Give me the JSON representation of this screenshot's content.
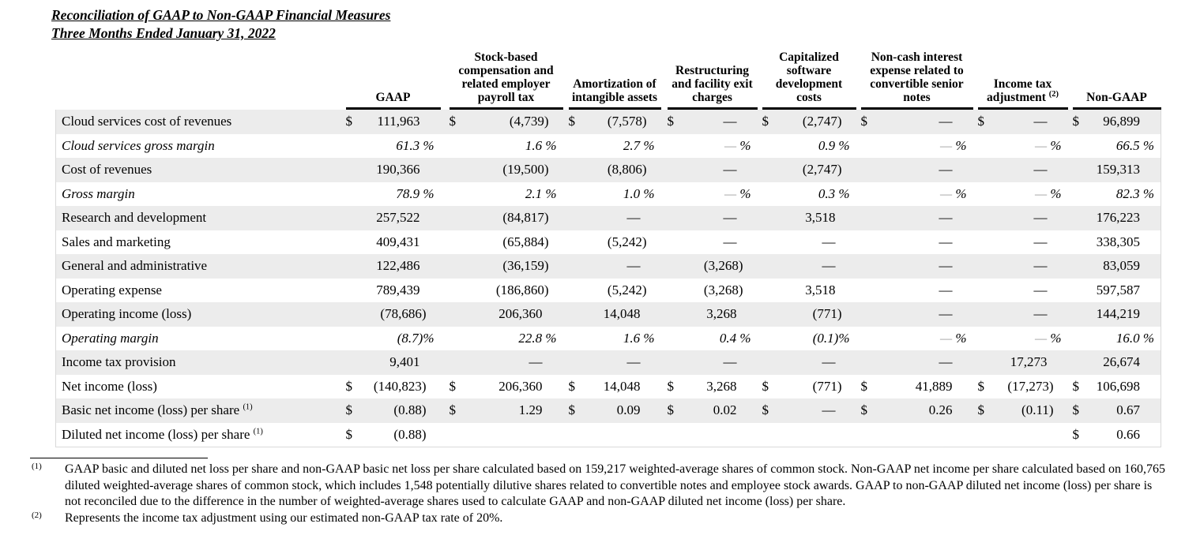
{
  "title": {
    "line1": "Reconciliation of GAAP to Non-GAAP Financial Measures",
    "line2": "Three Months Ended January 31, 2022"
  },
  "table": {
    "columns": [
      {
        "label": "GAAP",
        "sup": ""
      },
      {
        "label": "Stock-based compensation and related employer payroll tax",
        "sup": ""
      },
      {
        "label": "Amortization of intangible assets",
        "sup": ""
      },
      {
        "label": "Restructuring and facility exit charges",
        "sup": ""
      },
      {
        "label": "Capitalized software development costs",
        "sup": ""
      },
      {
        "label": "Non-cash interest expense related to convertible senior notes",
        "sup": ""
      },
      {
        "label": "Income tax adjustment",
        "sup": "(2)"
      },
      {
        "label": "Non-GAAP",
        "sup": ""
      }
    ],
    "rows": [
      {
        "label": "Cloud services cost of revenues",
        "sup": "",
        "shaded": true,
        "italic": false,
        "cells": [
          [
            "$",
            "111,963",
            "n"
          ],
          [
            "$",
            "(4,739)",
            "p"
          ],
          [
            "$",
            "(7,578)",
            "p"
          ],
          [
            "$",
            "—",
            "d"
          ],
          [
            "$",
            "(2,747)",
            "p"
          ],
          [
            "$",
            "—",
            "d"
          ],
          [
            "$",
            "—",
            "d"
          ],
          [
            "$",
            "96,899",
            "n"
          ]
        ]
      },
      {
        "label": "Cloud services gross margin",
        "sup": "",
        "shaded": false,
        "italic": true,
        "cells": [
          [
            "",
            "61.3 %",
            "pct"
          ],
          [
            "",
            "1.6 %",
            "pct"
          ],
          [
            "",
            "2.7 %",
            "pct"
          ],
          [
            "",
            "— %",
            "pctd"
          ],
          [
            "",
            "0.9 %",
            "pct"
          ],
          [
            "",
            "— %",
            "pctd"
          ],
          [
            "",
            "— %",
            "pctd"
          ],
          [
            "",
            "66.5 %",
            "pct"
          ]
        ]
      },
      {
        "label": "Cost of revenues",
        "sup": "",
        "shaded": true,
        "italic": false,
        "cells": [
          [
            "",
            "190,366",
            "n"
          ],
          [
            "",
            "(19,500)",
            "p"
          ],
          [
            "",
            "(8,806)",
            "p"
          ],
          [
            "",
            "—",
            "d"
          ],
          [
            "",
            "(2,747)",
            "p"
          ],
          [
            "",
            "—",
            "d"
          ],
          [
            "",
            "—",
            "d"
          ],
          [
            "",
            "159,313",
            "n"
          ]
        ]
      },
      {
        "label": "Gross margin",
        "sup": "",
        "shaded": false,
        "italic": true,
        "cells": [
          [
            "",
            "78.9 %",
            "pct"
          ],
          [
            "",
            "2.1 %",
            "pct"
          ],
          [
            "",
            "1.0 %",
            "pct"
          ],
          [
            "",
            "— %",
            "pctd"
          ],
          [
            "",
            "0.3 %",
            "pct"
          ],
          [
            "",
            "— %",
            "pctd"
          ],
          [
            "",
            "— %",
            "pctd"
          ],
          [
            "",
            "82.3 %",
            "pct"
          ]
        ]
      },
      {
        "label": "Research and development",
        "sup": "",
        "shaded": true,
        "italic": false,
        "cells": [
          [
            "",
            "257,522",
            "n"
          ],
          [
            "",
            "(84,817)",
            "p"
          ],
          [
            "",
            "—",
            "d"
          ],
          [
            "",
            "—",
            "d"
          ],
          [
            "",
            "3,518",
            "n"
          ],
          [
            "",
            "—",
            "d"
          ],
          [
            "",
            "—",
            "d"
          ],
          [
            "",
            "176,223",
            "n"
          ]
        ]
      },
      {
        "label": "Sales and marketing",
        "sup": "",
        "shaded": false,
        "italic": false,
        "cells": [
          [
            "",
            "409,431",
            "n"
          ],
          [
            "",
            "(65,884)",
            "p"
          ],
          [
            "",
            "(5,242)",
            "p"
          ],
          [
            "",
            "—",
            "d"
          ],
          [
            "",
            "—",
            "d"
          ],
          [
            "",
            "—",
            "d"
          ],
          [
            "",
            "—",
            "d"
          ],
          [
            "",
            "338,305",
            "n"
          ]
        ]
      },
      {
        "label": "General and administrative",
        "sup": "",
        "shaded": true,
        "italic": false,
        "cells": [
          [
            "",
            "122,486",
            "n"
          ],
          [
            "",
            "(36,159)",
            "p"
          ],
          [
            "",
            "—",
            "d"
          ],
          [
            "",
            "(3,268)",
            "p"
          ],
          [
            "",
            "—",
            "d"
          ],
          [
            "",
            "—",
            "d"
          ],
          [
            "",
            "—",
            "d"
          ],
          [
            "",
            "83,059",
            "n"
          ]
        ]
      },
      {
        "label": "Operating expense",
        "sup": "",
        "shaded": false,
        "italic": false,
        "cells": [
          [
            "",
            "789,439",
            "n"
          ],
          [
            "",
            "(186,860)",
            "p"
          ],
          [
            "",
            "(5,242)",
            "p"
          ],
          [
            "",
            "(3,268)",
            "p"
          ],
          [
            "",
            "3,518",
            "n"
          ],
          [
            "",
            "—",
            "d"
          ],
          [
            "",
            "—",
            "d"
          ],
          [
            "",
            "597,587",
            "n"
          ]
        ]
      },
      {
        "label": "Operating income (loss)",
        "sup": "",
        "shaded": true,
        "italic": false,
        "cells": [
          [
            "",
            "(78,686)",
            "p"
          ],
          [
            "",
            "206,360",
            "n"
          ],
          [
            "",
            "14,048",
            "n"
          ],
          [
            "",
            "3,268",
            "n"
          ],
          [
            "",
            "(771)",
            "p"
          ],
          [
            "",
            "—",
            "d"
          ],
          [
            "",
            "—",
            "d"
          ],
          [
            "",
            "144,219",
            "n"
          ]
        ]
      },
      {
        "label": "Operating margin",
        "sup": "",
        "shaded": false,
        "italic": true,
        "cells": [
          [
            "",
            "(8.7)%",
            "pctp"
          ],
          [
            "",
            "22.8 %",
            "pct"
          ],
          [
            "",
            "1.6 %",
            "pct"
          ],
          [
            "",
            "0.4 %",
            "pct"
          ],
          [
            "",
            "(0.1)%",
            "pctp"
          ],
          [
            "",
            "— %",
            "pctd"
          ],
          [
            "",
            "— %",
            "pctd"
          ],
          [
            "",
            "16.0 %",
            "pct"
          ]
        ]
      },
      {
        "label": "Income tax provision",
        "sup": "",
        "shaded": true,
        "italic": false,
        "cells": [
          [
            "",
            "9,401",
            "n"
          ],
          [
            "",
            "—",
            "d"
          ],
          [
            "",
            "—",
            "d"
          ],
          [
            "",
            "—",
            "d"
          ],
          [
            "",
            "—",
            "d"
          ],
          [
            "",
            "—",
            "d"
          ],
          [
            "",
            "17,273",
            "n"
          ],
          [
            "",
            "26,674",
            "n"
          ]
        ]
      },
      {
        "label": "Net income (loss)",
        "sup": "",
        "shaded": false,
        "italic": false,
        "cells": [
          [
            "$",
            "(140,823)",
            "p"
          ],
          [
            "$",
            "206,360",
            "n"
          ],
          [
            "$",
            "14,048",
            "n"
          ],
          [
            "$",
            "3,268",
            "n"
          ],
          [
            "$",
            "(771)",
            "p"
          ],
          [
            "$",
            "41,889",
            "n"
          ],
          [
            "$",
            "(17,273)",
            "p"
          ],
          [
            "$",
            "106,698",
            "n"
          ]
        ]
      },
      {
        "label": "Basic net income (loss) per share",
        "sup": "(1)",
        "shaded": true,
        "italic": false,
        "cells": [
          [
            "$",
            "(0.88)",
            "p"
          ],
          [
            "$",
            "1.29",
            "n"
          ],
          [
            "$",
            "0.09",
            "n"
          ],
          [
            "$",
            "0.02",
            "n"
          ],
          [
            "$",
            "—",
            "d"
          ],
          [
            "$",
            "0.26",
            "n"
          ],
          [
            "$",
            "(0.11)",
            "p"
          ],
          [
            "$",
            "0.67",
            "n"
          ]
        ]
      },
      {
        "label": "Diluted net income (loss) per share",
        "sup": "(1)",
        "shaded": false,
        "italic": false,
        "cells": [
          [
            "$",
            "(0.88)",
            "p"
          ],
          [
            "",
            "",
            "e"
          ],
          [
            "",
            "",
            "e"
          ],
          [
            "",
            "",
            "e"
          ],
          [
            "",
            "",
            "e"
          ],
          [
            "",
            "",
            "e"
          ],
          [
            "",
            "",
            "e"
          ],
          [
            "$",
            "0.66",
            "n"
          ]
        ]
      }
    ]
  },
  "footnotes": [
    {
      "marker": "(1)",
      "text": "GAAP basic and diluted net loss per share and non-GAAP basic net loss per share calculated based on 159,217 weighted-average shares of common stock. Non-GAAP net income per share calculated based on 160,765 diluted weighted-average shares of common stock, which includes 1,548 potentially dilutive shares related to convertible notes and employee stock awards. GAAP to non-GAAP diluted net income (loss) per share is not reconciled due to the difference in the number of weighted-average shares used to calculate GAAP and non-GAAP diluted net income (loss) per share."
    },
    {
      "marker": "(2)",
      "text": "Represents the income tax adjustment using our estimated non-GAAP tax rate of 20%."
    }
  ]
}
